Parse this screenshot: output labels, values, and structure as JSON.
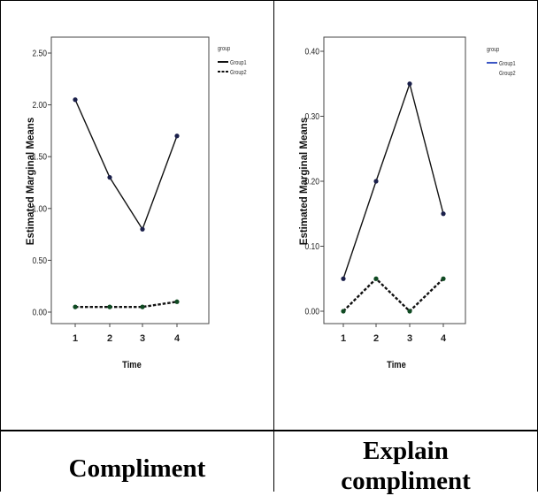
{
  "chart_data": [
    {
      "type": "line",
      "x": [
        1,
        2,
        3,
        4
      ],
      "xlabel": "Time",
      "ylabel": "Estimated Marginal Means",
      "ylim": [
        0,
        2.5
      ],
      "yticks": [
        "0.00",
        "0.50",
        "1.00",
        "1.50",
        "2.00",
        "2.50"
      ],
      "xticks": [
        "1",
        "2",
        "3",
        "4"
      ],
      "legend_title": "group",
      "legend_position": "top-right",
      "grid": false,
      "series": [
        {
          "name": "Group1",
          "values": [
            2.05,
            1.3,
            0.8,
            1.7
          ],
          "color": "#111111",
          "style": "solid"
        },
        {
          "name": "Group2",
          "values": [
            0.05,
            0.05,
            0.05,
            0.1
          ],
          "color": "#111111",
          "style": "dashed"
        }
      ]
    },
    {
      "type": "line",
      "x": [
        1,
        2,
        3,
        4
      ],
      "xlabel": "Time",
      "ylabel": "Estimated Marginal Means",
      "ylim": [
        0,
        0.4
      ],
      "yticks": [
        "0.00",
        "0.10",
        "0.20",
        "0.30",
        "0.40"
      ],
      "xticks": [
        "1",
        "2",
        "3",
        "4"
      ],
      "legend_title": "group",
      "legend_position": "top-right",
      "grid": false,
      "series": [
        {
          "name": "Group1",
          "values": [
            0.05,
            0.2,
            0.35,
            0.15
          ],
          "color": "#111111",
          "style": "solid",
          "legend_color": "#3b55c4"
        },
        {
          "name": "Group2",
          "values": [
            0.0,
            0.05,
            0.0,
            0.05
          ],
          "color": "#111111",
          "style": "dashed"
        }
      ]
    }
  ],
  "captions": {
    "left": "Compliment",
    "right_line1": "Explain",
    "right_line2": "compliment"
  },
  "colors": {
    "line": "#111111",
    "marker_group1": "#1a1f4a",
    "marker_group2": "#0f4a22",
    "legend_blue": "#3b55c4",
    "border": "#000000"
  }
}
